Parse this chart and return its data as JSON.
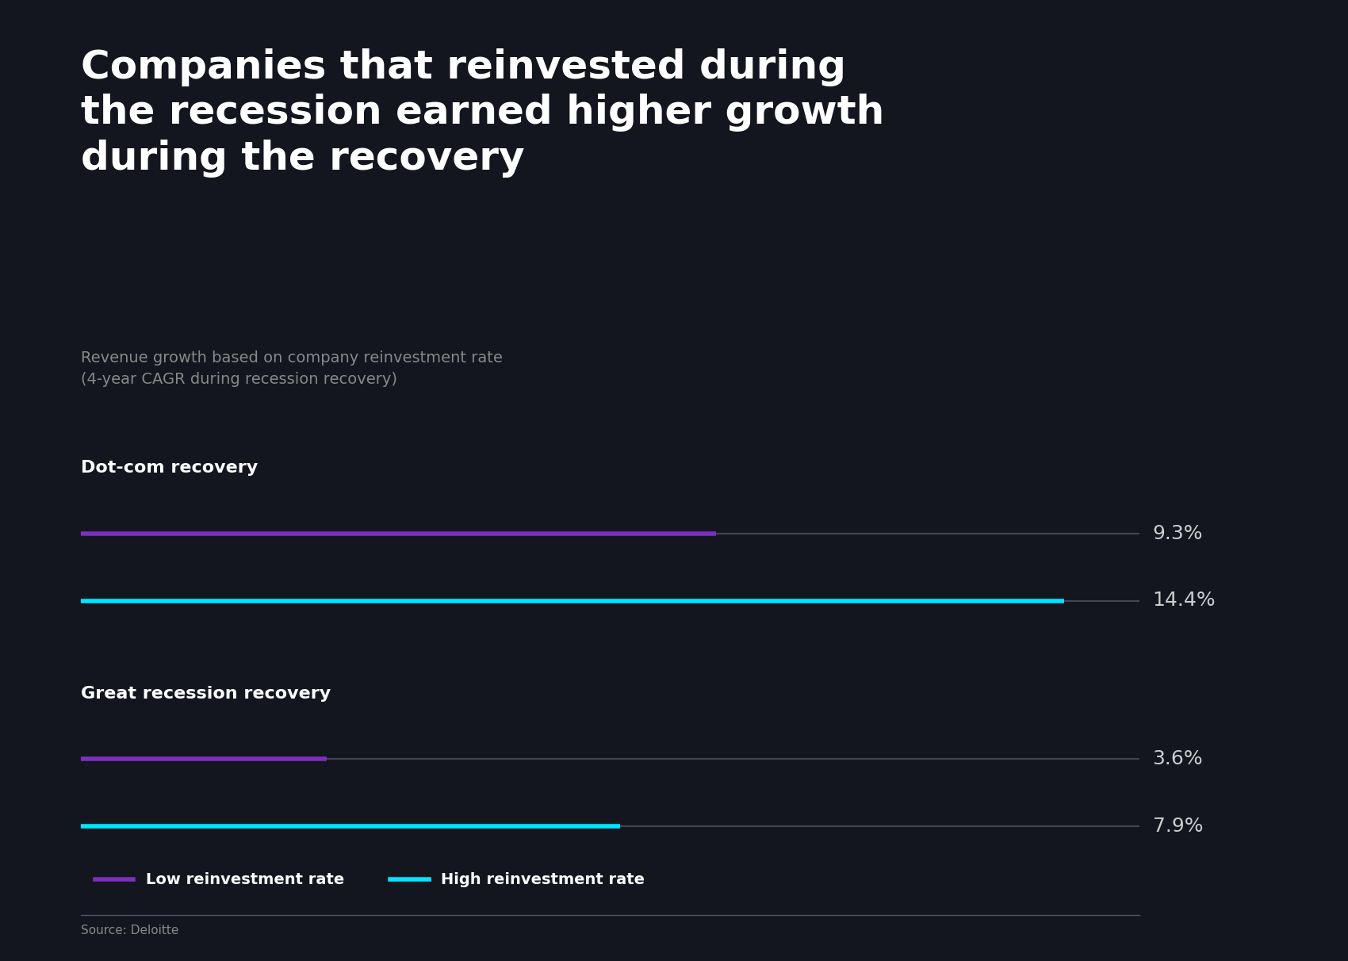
{
  "background_color": "#14161f",
  "title": "Companies that reinvested during\nthe recession earned higher growth\nduring the recovery",
  "subtitle": "Revenue growth based on company reinvestment rate\n(4-year CAGR during recession recovery)",
  "title_color": "#ffffff",
  "subtitle_color": "#888888",
  "title_fontsize": 36,
  "subtitle_fontsize": 14,
  "sections": [
    {
      "label": "Dot-com recovery",
      "low_value": 9.3,
      "high_value": 14.4,
      "low_label": "9.3%",
      "high_label": "14.4%"
    },
    {
      "label": "Great recession recovery",
      "low_value": 3.6,
      "high_value": 7.9,
      "low_label": "3.6%",
      "high_label": "7.9%"
    }
  ],
  "max_value": 15.5,
  "low_color": "#7b2fbe",
  "high_color": "#00e5ff",
  "track_color": "#444455",
  "label_color": "#ffffff",
  "value_color": "#cccccc",
  "section_label_fontsize": 16,
  "value_fontsize": 18,
  "line_width": 4,
  "legend_low_label": "Low reinvestment rate",
  "legend_high_label": "High reinvestment rate",
  "source_text": "Source: Deloitte",
  "source_color": "#888888",
  "separator_color": "#555566"
}
